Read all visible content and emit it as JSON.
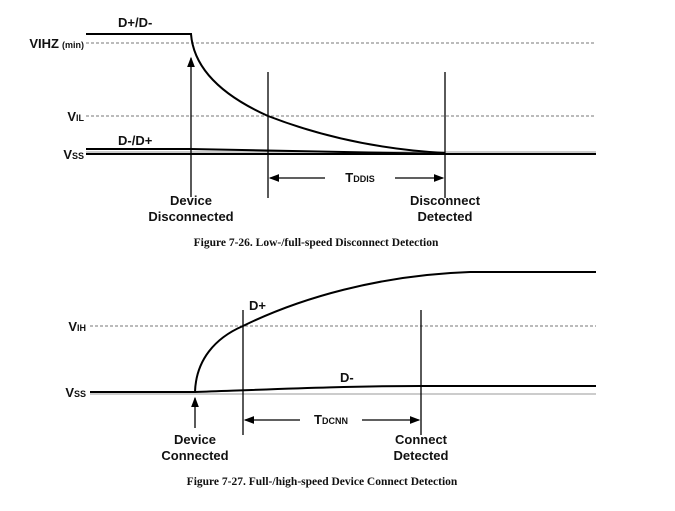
{
  "figure1": {
    "caption": "Figure 7-26.  Low-/full-speed Disconnect Detection",
    "levels": {
      "vihz": "V",
      "vihz_sub": "IHZ",
      "vihz_note": "(min)",
      "vil": "V",
      "vil_sub": "IL",
      "vss": "V",
      "vss_sub": "SS"
    },
    "signal_high": "D+/D-",
    "signal_low": "D-/D+",
    "timing": "T",
    "timing_sub": "DDIS",
    "event1": [
      "Device",
      "Disconnected"
    ],
    "event2": [
      "Disconnect",
      "Detected"
    ]
  },
  "figure2": {
    "caption": "Figure 7-27.  Full-/high-speed Device Connect Detection",
    "levels": {
      "vih": "V",
      "vih_sub": "IH",
      "vss": "V",
      "vss_sub": "SS"
    },
    "signal_high": "D+",
    "signal_low": "D-",
    "timing": "T",
    "timing_sub": "DCNN",
    "event1": [
      "Device",
      "Connected"
    ],
    "event2": [
      "Connect",
      "Detected"
    ]
  }
}
